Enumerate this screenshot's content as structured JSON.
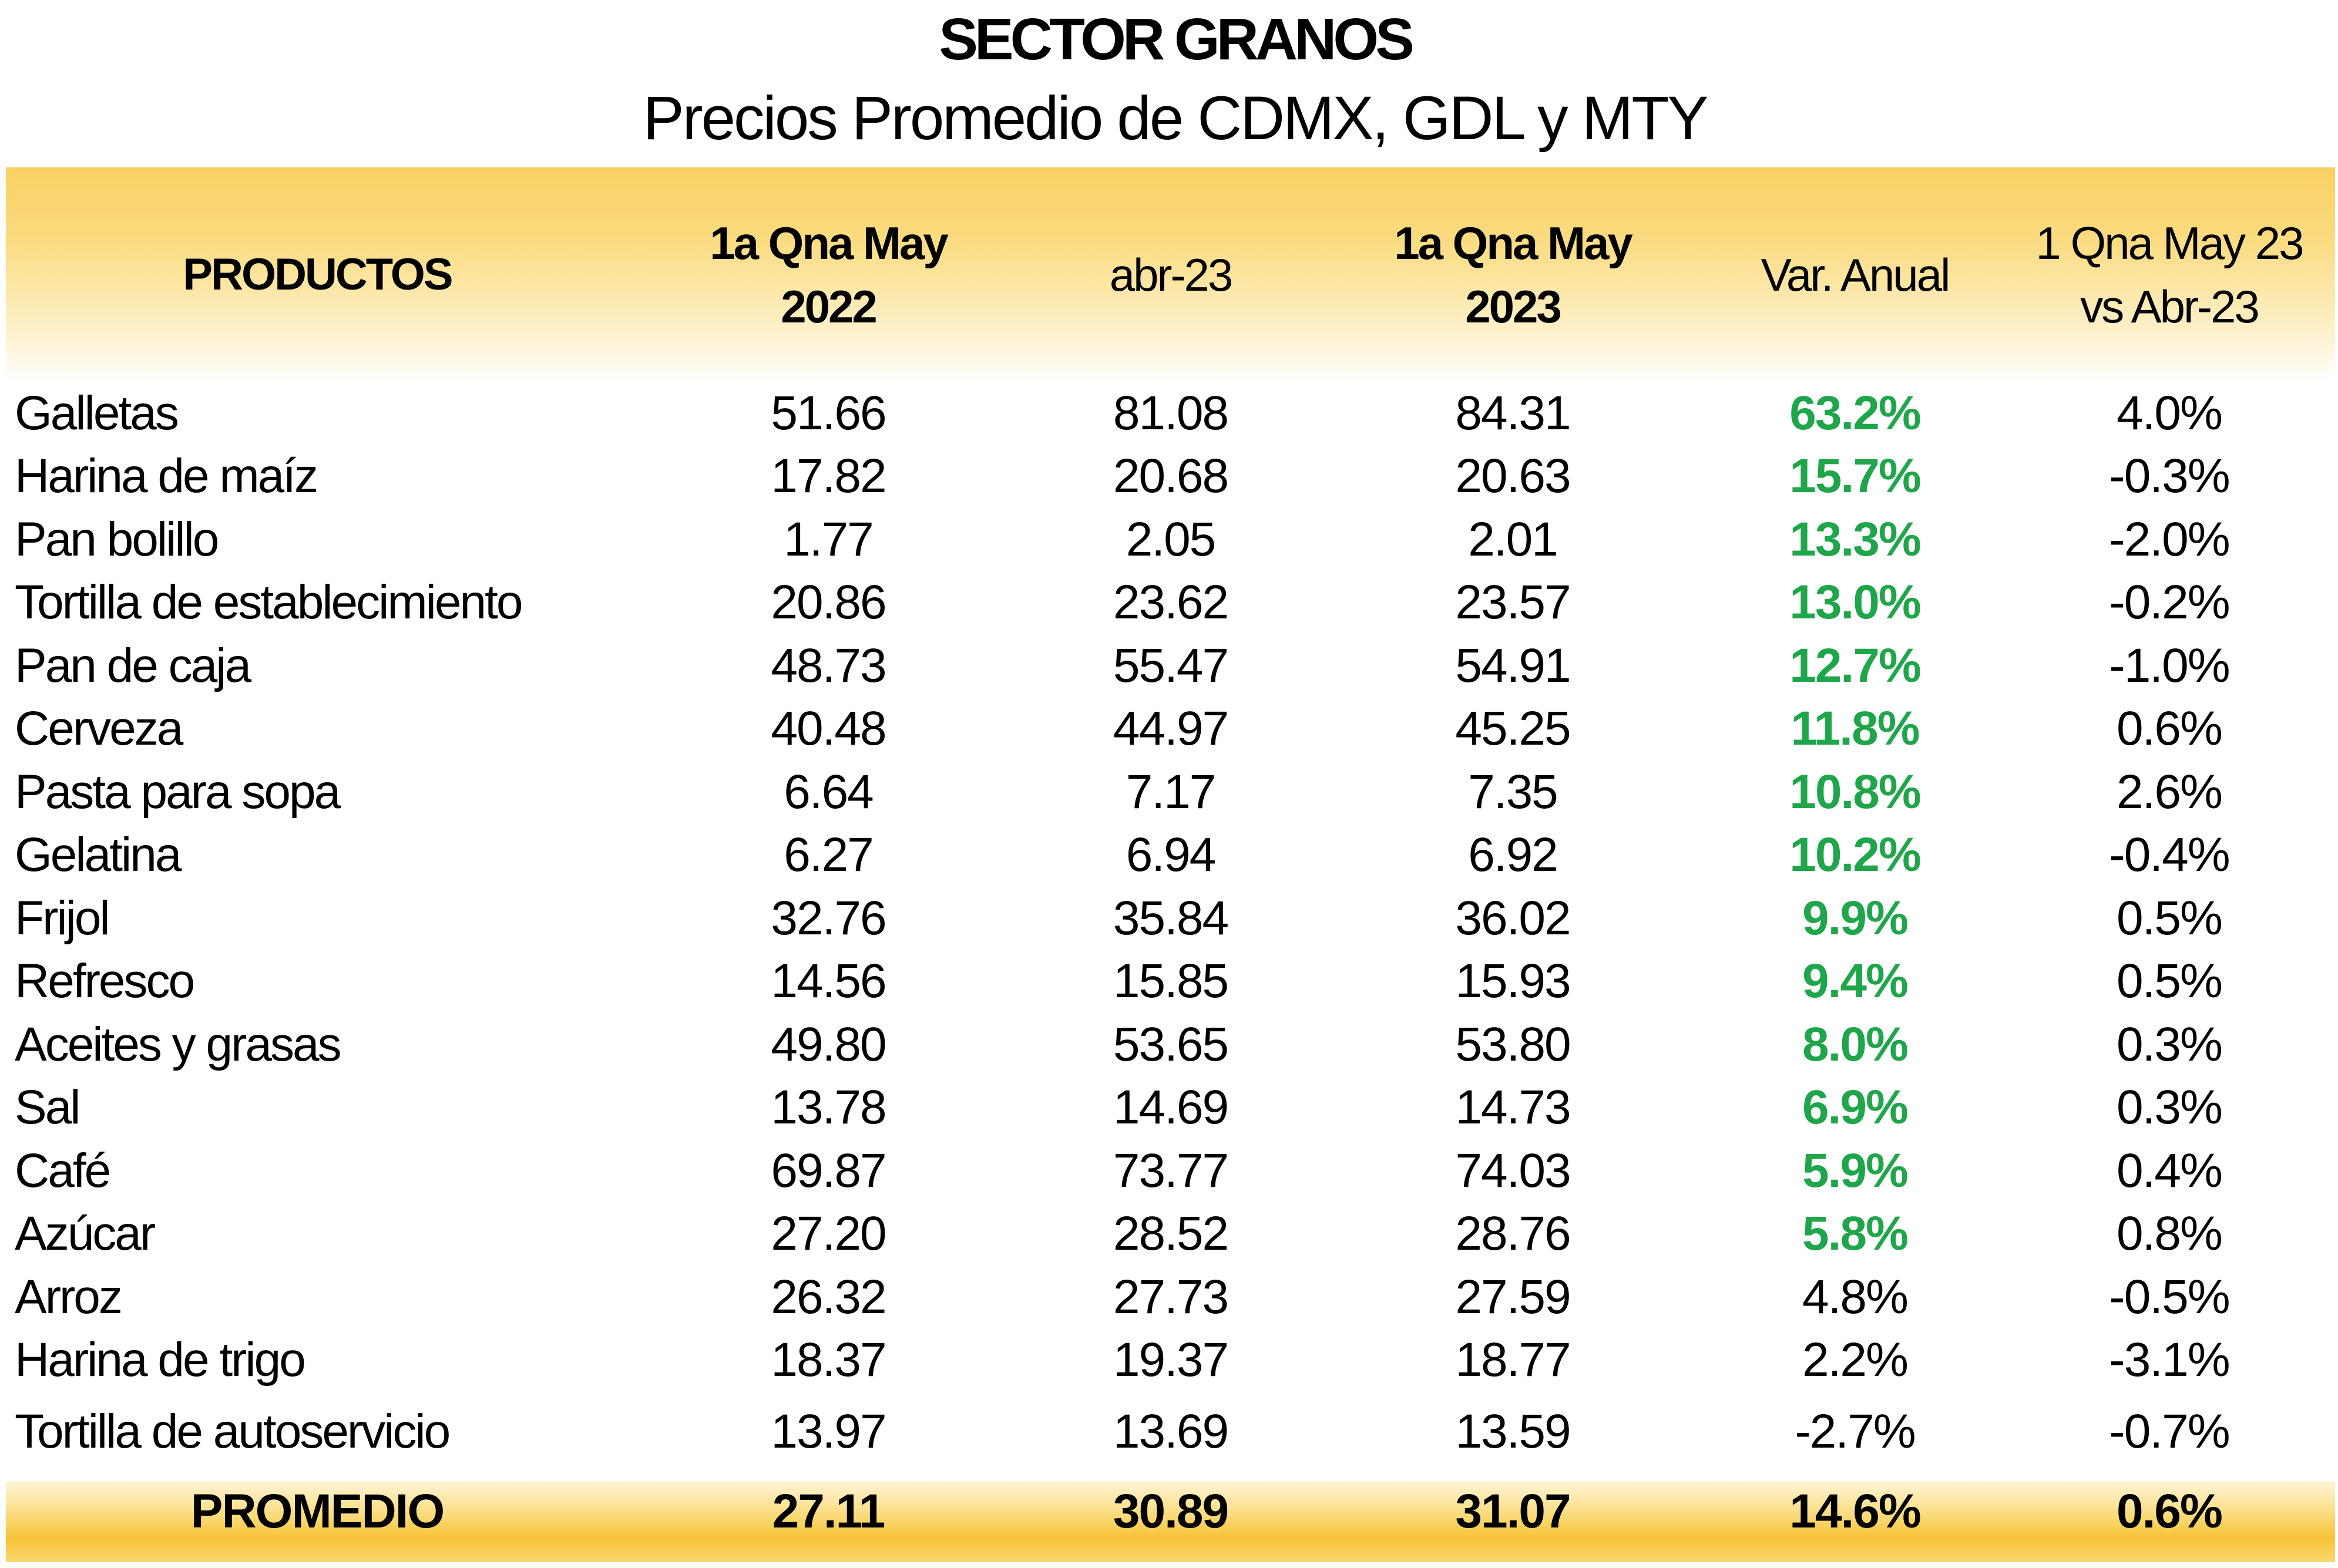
{
  "title": "SECTOR GRANOS",
  "subtitle": "Precios Promedio de CDMX, GDL y MTY",
  "colors": {
    "header_band": "#f9d062",
    "positive_highlight": "#1fa64a"
  },
  "header": {
    "products": "PRODUCTOS",
    "col1_line1": "1a Qna May",
    "col1_line2": "2022",
    "col2": "abr-23",
    "col3_line1": "1a Qna May",
    "col3_line2": "2023",
    "col4": "Var. Anual",
    "col5_line1": "1 Qna May 23",
    "col5_line2": "vs Abr-23"
  },
  "rows": [
    {
      "product": "Galletas",
      "may22": "51.66",
      "abr23": "81.08",
      "may23": "84.31",
      "var_anual": "63.2%",
      "var_mensual": "4.0%"
    },
    {
      "product": "Harina de maíz",
      "may22": "17.82",
      "abr23": "20.68",
      "may23": "20.63",
      "var_anual": "15.7%",
      "var_mensual": "-0.3%"
    },
    {
      "product": "Pan bolillo",
      "may22": "1.77",
      "abr23": "2.05",
      "may23": "2.01",
      "var_anual": "13.3%",
      "var_mensual": "-2.0%"
    },
    {
      "product": "Tortilla de establecimiento",
      "may22": "20.86",
      "abr23": "23.62",
      "may23": "23.57",
      "var_anual": "13.0%",
      "var_mensual": "-0.2%"
    },
    {
      "product": "Pan de caja",
      "may22": "48.73",
      "abr23": "55.47",
      "may23": "54.91",
      "var_anual": "12.7%",
      "var_mensual": "-1.0%"
    },
    {
      "product": "Cerveza",
      "may22": "40.48",
      "abr23": "44.97",
      "may23": "45.25",
      "var_anual": "11.8%",
      "var_mensual": "0.6%"
    },
    {
      "product": "Pasta para sopa",
      "may22": "6.64",
      "abr23": "7.17",
      "may23": "7.35",
      "var_anual": "10.8%",
      "var_mensual": "2.6%"
    },
    {
      "product": "Gelatina",
      "may22": "6.27",
      "abr23": "6.94",
      "may23": "6.92",
      "var_anual": "10.2%",
      "var_mensual": "-0.4%"
    },
    {
      "product": "Frijol",
      "may22": "32.76",
      "abr23": "35.84",
      "may23": "36.02",
      "var_anual": "9.9%",
      "var_mensual": "0.5%"
    },
    {
      "product": "Refresco",
      "may22": "14.56",
      "abr23": "15.85",
      "may23": "15.93",
      "var_anual": "9.4%",
      "var_mensual": "0.5%"
    },
    {
      "product": "Aceites y grasas",
      "may22": "49.80",
      "abr23": "53.65",
      "may23": "53.80",
      "var_anual": "8.0%",
      "var_mensual": "0.3%"
    },
    {
      "product": "Sal",
      "may22": "13.78",
      "abr23": "14.69",
      "may23": "14.73",
      "var_anual": "6.9%",
      "var_mensual": "0.3%"
    },
    {
      "product": "Café",
      "may22": "69.87",
      "abr23": "73.77",
      "may23": "74.03",
      "var_anual": "5.9%",
      "var_mensual": "0.4%"
    },
    {
      "product": "Azúcar",
      "may22": "27.20",
      "abr23": "28.52",
      "may23": "28.76",
      "var_anual": "5.8%",
      "var_mensual": "0.8%"
    },
    {
      "product": "Arroz",
      "may22": "26.32",
      "abr23": "27.73",
      "may23": "27.59",
      "var_anual": "4.8%",
      "var_mensual": "-0.5%"
    },
    {
      "product": "Harina de trigo",
      "may22": "18.37",
      "abr23": "19.37",
      "may23": "18.77",
      "var_anual": "2.2%",
      "var_mensual": "-3.1%"
    },
    {
      "product": "Tortilla de autoservicio",
      "may22": "13.97",
      "abr23": "13.69",
      "may23": "13.59",
      "var_anual": "-2.7%",
      "var_mensual": "-0.7%"
    }
  ],
  "total": {
    "label": "PROMEDIO",
    "may22": "27.11",
    "abr23": "30.89",
    "may23": "31.07",
    "var_anual": "14.6%",
    "var_mensual": "0.6%"
  }
}
